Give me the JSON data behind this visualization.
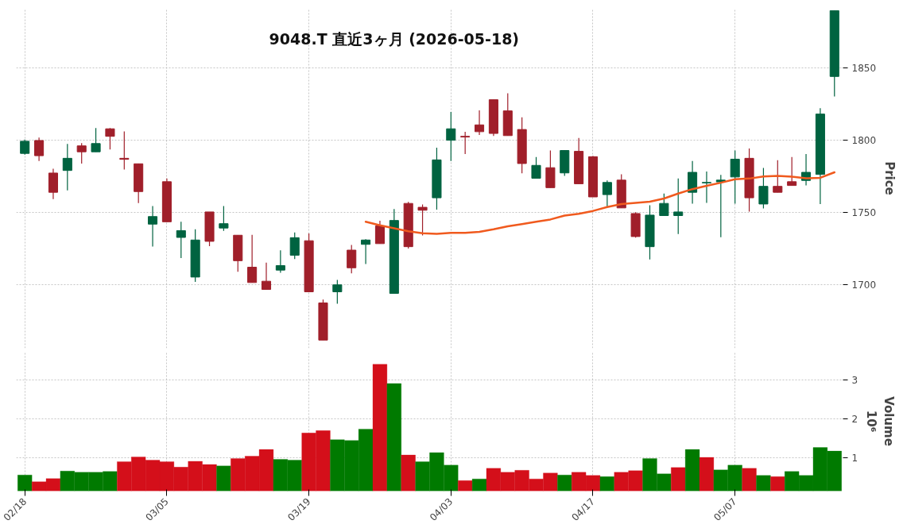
{
  "chart_data": [
    {
      "type": "candlestick",
      "title": "9048.T 直近3ヶ月 (2026-05-18)",
      "ylabel": "Price",
      "categories": [
        null,
        null,
        null,
        null,
        null,
        null,
        null,
        null,
        null,
        null,
        null,
        null,
        null,
        null,
        null,
        null,
        null,
        null,
        null,
        null,
        null,
        null,
        null,
        null,
        null,
        null,
        null,
        null,
        null,
        null,
        null,
        null,
        null,
        null,
        null,
        null,
        null,
        null,
        null,
        null,
        null,
        null,
        null,
        null,
        null,
        null,
        null,
        null,
        null,
        null,
        null,
        null,
        null,
        null,
        null,
        null,
        null,
        null
      ],
      "ohlc": [
        [
          1790.7,
          1800.2,
          1789.8,
          1799.1
        ],
        [
          1799.6,
          1801.6,
          1785.5,
          1789.1
        ],
        [
          1777.1,
          1780.1,
          1759.1,
          1763.8
        ],
        [
          1778.9,
          1797.3,
          1765.1,
          1787.3
        ],
        [
          1795.9,
          1797.8,
          1783.7,
          1791.8
        ],
        [
          1791.8,
          1808.2,
          1791.8,
          1797.5
        ],
        [
          1807.7,
          1808.2,
          1793.4,
          1802.5
        ],
        [
          1787.3,
          1805.9,
          1779.6,
          1786.6
        ],
        [
          1783.5,
          1783.5,
          1756.3,
          1764.3
        ],
        [
          1741.8,
          1754.3,
          1726.3,
          1747.0
        ],
        [
          1771.1,
          1773.3,
          1743.4,
          1743.4
        ],
        [
          1732.6,
          1743.5,
          1718.3,
          1737.3
        ],
        [
          1705.2,
          1738.2,
          1701.8,
          1730.8
        ],
        [
          1750.2,
          1750.2,
          1726.5,
          1729.9
        ],
        [
          1739.1,
          1754.3,
          1737.1,
          1742.1
        ],
        [
          1734.1,
          1734.1,
          1708.8,
          1716.5
        ],
        [
          1712.0,
          1734.4,
          1701.4,
          1701.4
        ],
        [
          1702.3,
          1715.1,
          1696.6,
          1696.6
        ],
        [
          1710.0,
          1723.7,
          1708.1,
          1713.1
        ],
        [
          1720.3,
          1736.0,
          1717.7,
          1732.4
        ],
        [
          1730.3,
          1735.3,
          1695.0,
          1695.0
        ],
        [
          1687.3,
          1689.6,
          1661.6,
          1661.6
        ],
        [
          1695.0,
          1703.2,
          1686.7,
          1699.8
        ],
        [
          1723.8,
          1727.4,
          1707.7,
          1711.6
        ],
        [
          1727.8,
          1731.4,
          1714.2,
          1730.8
        ],
        [
          1740.5,
          1744.1,
          1728.3,
          1728.3
        ],
        [
          1693.9,
          1752.2,
          1693.9,
          1744.3
        ],
        [
          1756.1,
          1757.2,
          1724.9,
          1726.2
        ],
        [
          1753.4,
          1755.4,
          1733.9,
          1751.4
        ],
        [
          1760.0,
          1794.6,
          1751.8,
          1786.2
        ],
        [
          1799.8,
          1819.4,
          1785.5,
          1807.7
        ],
        [
          1802.5,
          1805.6,
          1790.3,
          1802.0
        ],
        [
          1810.4,
          1820.4,
          1803.4,
          1805.7
        ],
        [
          1827.8,
          1827.8,
          1802.7,
          1804.5
        ],
        [
          1820.1,
          1832.3,
          1803.0,
          1803.0
        ],
        [
          1807.2,
          1815.6,
          1776.9,
          1783.7
        ],
        [
          1773.5,
          1788.2,
          1773.5,
          1782.4
        ],
        [
          1780.8,
          1792.7,
          1767.0,
          1767.0
        ],
        [
          1777.2,
          1792.7,
          1775.1,
          1792.7
        ],
        [
          1792.1,
          1801.4,
          1769.7,
          1769.7
        ],
        [
          1788.4,
          1788.9,
          1760.6,
          1760.6
        ],
        [
          1762.2,
          1772.0,
          1753.9,
          1770.6
        ],
        [
          1772.2,
          1776.3,
          1753.0,
          1753.0
        ],
        [
          1749.1,
          1750.0,
          1732.4,
          1733.2
        ],
        [
          1726.2,
          1754.8,
          1717.4,
          1748.0
        ],
        [
          1747.7,
          1762.9,
          1747.7,
          1756.1
        ],
        [
          1747.7,
          1773.3,
          1734.9,
          1750.2
        ],
        [
          1763.8,
          1785.5,
          1755.9,
          1777.6
        ],
        [
          1770.3,
          1778.1,
          1756.5,
          1770.6
        ],
        [
          1771.0,
          1775.8,
          1732.8,
          1772.2
        ],
        [
          1774.4,
          1792.7,
          1755.9,
          1786.7
        ],
        [
          1787.3,
          1794.1,
          1750.4,
          1760.0
        ],
        [
          1755.7,
          1780.6,
          1752.7,
          1767.9
        ],
        [
          1767.9,
          1786.0,
          1763.8,
          1763.8
        ],
        [
          1771.1,
          1788.2,
          1768.5,
          1768.5
        ],
        [
          1772.0,
          1790.3,
          1768.5,
          1777.6
        ],
        [
          1776.2,
          1821.9,
          1755.6,
          1817.9
        ],
        [
          1843.9,
          1889.4,
          1830.1,
          1889.4
        ]
      ],
      "colors": [
        "#006340",
        "#a01f2a",
        "#a01f2a",
        "#006340",
        "#a01f2a",
        "#006340",
        "#a01f2a",
        "#a01f2a",
        "#a01f2a",
        "#006340",
        "#a01f2a",
        "#006340",
        "#006340",
        "#a01f2a",
        "#006340",
        "#a01f2a",
        "#a01f2a",
        "#a01f2a",
        "#006340",
        "#006340",
        "#a01f2a",
        "#a01f2a",
        "#006340",
        "#a01f2a",
        "#006340",
        "#a01f2a",
        "#006340",
        "#a01f2a",
        "#a01f2a",
        "#006340",
        "#006340",
        "#a01f2a",
        "#a01f2a",
        "#a01f2a",
        "#a01f2a",
        "#a01f2a",
        "#006340",
        "#a01f2a",
        "#006340",
        "#a01f2a",
        "#a01f2a",
        "#006340",
        "#a01f2a",
        "#a01f2a",
        "#006340",
        "#006340",
        "#006340",
        "#006340",
        "#006340",
        "#006340",
        "#006340",
        "#a01f2a",
        "#006340",
        "#a01f2a",
        "#a01f2a",
        "#006340",
        "#006340",
        "#006340"
      ],
      "series": [
        {
          "type": "line",
          "color": "#f05a1e",
          "values": [
            null,
            null,
            null,
            null,
            null,
            null,
            null,
            null,
            null,
            null,
            null,
            null,
            null,
            null,
            null,
            null,
            null,
            null,
            null,
            null,
            null,
            null,
            null,
            null,
            1743.4,
            1741.0,
            1738.9,
            1736.9,
            1735.5,
            1735.1,
            1735.7,
            1735.8,
            1736.4,
            1738.2,
            1740.3,
            1741.8,
            1743.4,
            1745.0,
            1747.7,
            1748.9,
            1750.9,
            1753.6,
            1755.7,
            1756.5,
            1757.3,
            1759.5,
            1762.9,
            1766.0,
            1768.3,
            1770.4,
            1772.8,
            1773.3,
            1774.7,
            1775.1,
            1774.6,
            1773.5,
            1773.8,
            1777.6
          ]
        }
      ],
      "ylim": [
        1656,
        1891
      ],
      "yticks": [
        1700,
        1750,
        1800,
        1850
      ],
      "grid": true,
      "tick_labels": "y"
    },
    {
      "type": "bar",
      "ylabel": "Volume",
      "annotations": [
        "10⁶"
      ],
      "categories": [
        "02/18",
        null,
        null,
        null,
        null,
        null,
        null,
        null,
        null,
        null,
        "03/05",
        null,
        null,
        null,
        null,
        null,
        null,
        null,
        null,
        null,
        "03/19",
        null,
        null,
        null,
        null,
        null,
        null,
        null,
        null,
        null,
        "04/03",
        null,
        null,
        null,
        null,
        null,
        null,
        null,
        null,
        null,
        "04/17",
        null,
        null,
        null,
        null,
        null,
        null,
        null,
        null,
        null,
        "05/07",
        null,
        null,
        null,
        null,
        null,
        null,
        null
      ],
      "values": [
        0.57,
        0.4,
        0.48,
        0.67,
        0.64,
        0.64,
        0.66,
        0.91,
        1.03,
        0.95,
        0.91,
        0.77,
        0.92,
        0.84,
        0.8,
        0.99,
        1.05,
        1.22,
        0.97,
        0.95,
        1.64,
        1.7,
        1.47,
        1.45,
        1.74,
        3.39,
        2.9,
        1.08,
        0.91,
        1.14,
        0.82,
        0.43,
        0.47,
        0.74,
        0.64,
        0.69,
        0.47,
        0.62,
        0.57,
        0.64,
        0.56,
        0.53,
        0.64,
        0.68,
        0.99,
        0.6,
        0.76,
        1.22,
        1.02,
        0.7,
        0.82,
        0.74,
        0.56,
        0.53,
        0.66,
        0.56,
        1.27,
        1.18
      ],
      "colors": [
        "#007a00",
        "#d40f1a",
        "#d40f1a",
        "#007a00",
        "#007a00",
        "#007a00",
        "#007a00",
        "#d40f1a",
        "#d40f1a",
        "#d40f1a",
        "#d40f1a",
        "#d40f1a",
        "#d40f1a",
        "#d40f1a",
        "#007a00",
        "#d40f1a",
        "#d40f1a",
        "#d40f1a",
        "#007a00",
        "#007a00",
        "#d40f1a",
        "#d40f1a",
        "#007a00",
        "#007a00",
        "#007a00",
        "#d40f1a",
        "#007a00",
        "#d40f1a",
        "#007a00",
        "#007a00",
        "#007a00",
        "#d40f1a",
        "#007a00",
        "#d40f1a",
        "#d40f1a",
        "#d40f1a",
        "#d40f1a",
        "#d40f1a",
        "#007a00",
        "#d40f1a",
        "#d40f1a",
        "#007a00",
        "#d40f1a",
        "#d40f1a",
        "#007a00",
        "#007a00",
        "#d40f1a",
        "#007a00",
        "#d40f1a",
        "#007a00",
        "#007a00",
        "#d40f1a",
        "#007a00",
        "#d40f1a",
        "#007a00",
        "#007a00",
        "#007a00",
        "#007a00"
      ],
      "ylim": [
        0.16,
        3.72
      ],
      "yticks": [
        1,
        2,
        3
      ],
      "grid": true
    }
  ]
}
